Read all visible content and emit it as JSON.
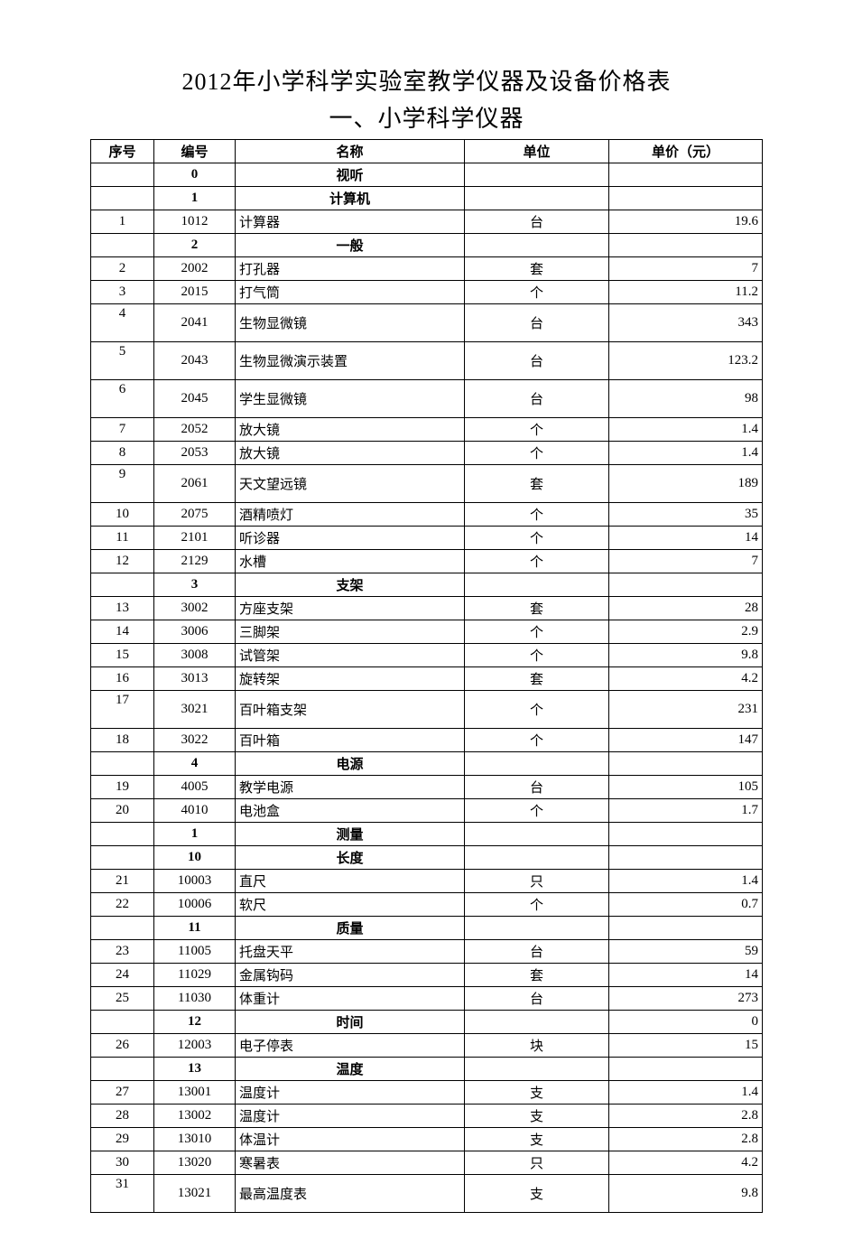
{
  "title_line1": "2012年小学科学实验室教学仪器及设备价格表",
  "title_line2": "一、小学科学仪器",
  "columns": {
    "seq": "序号",
    "code": "编号",
    "name": "名称",
    "unit": "单位",
    "price": "单价（元）"
  },
  "rows": [
    {
      "type": "section",
      "code": "0",
      "name": "视听"
    },
    {
      "type": "section",
      "code": "1",
      "name": "计算机"
    },
    {
      "type": "item",
      "seq": "1",
      "code": "1012",
      "name": "计算器",
      "unit": "台",
      "price": "19.6"
    },
    {
      "type": "section",
      "code": "2",
      "name": "一般"
    },
    {
      "type": "item",
      "seq": "2",
      "code": "2002",
      "name": "打孔器",
      "unit": "套",
      "price": "7"
    },
    {
      "type": "item",
      "seq": "3",
      "code": "2015",
      "name": "打气筒",
      "unit": "个",
      "price": "11.2"
    },
    {
      "type": "item",
      "seq": "4",
      "code": "2041",
      "name": "生物显微镜",
      "unit": "台",
      "price": "343",
      "tall": true
    },
    {
      "type": "item",
      "seq": "5",
      "code": "2043",
      "name": "生物显微演示装置",
      "unit": "台",
      "price": "123.2",
      "tall": true,
      "top": true
    },
    {
      "type": "item",
      "seq": "6",
      "code": "2045",
      "name": "学生显微镜",
      "unit": "台",
      "price": "98",
      "tall": true
    },
    {
      "type": "item",
      "seq": "7",
      "code": "2052",
      "name": "放大镜",
      "unit": "个",
      "price": "1.4"
    },
    {
      "type": "item",
      "seq": "8",
      "code": "2053",
      "name": "放大镜",
      "unit": "个",
      "price": "1.4"
    },
    {
      "type": "item",
      "seq": "9",
      "code": "2061",
      "name": "天文望远镜",
      "unit": "套",
      "price": "189",
      "tall": true,
      "top": true
    },
    {
      "type": "item",
      "seq": "10",
      "code": "2075",
      "name": "酒精喷灯",
      "unit": "个",
      "price": "35"
    },
    {
      "type": "item",
      "seq": "11",
      "code": "2101",
      "name": "听诊器",
      "unit": "个",
      "price": "14"
    },
    {
      "type": "item",
      "seq": "12",
      "code": "2129",
      "name": "水槽",
      "unit": "个",
      "price": "7"
    },
    {
      "type": "section",
      "code": "3",
      "name": "支架"
    },
    {
      "type": "item",
      "seq": "13",
      "code": "3002",
      "name": "方座支架",
      "unit": "套",
      "price": "28"
    },
    {
      "type": "item",
      "seq": "14",
      "code": "3006",
      "name": "三脚架",
      "unit": "个",
      "price": "2.9"
    },
    {
      "type": "item",
      "seq": "15",
      "code": "3008",
      "name": "试管架",
      "unit": "个",
      "price": "9.8"
    },
    {
      "type": "item",
      "seq": "16",
      "code": "3013",
      "name": "旋转架",
      "unit": "套",
      "price": "4.2"
    },
    {
      "type": "item",
      "seq": "17",
      "code": "3021",
      "name": "百叶箱支架",
      "unit": "个",
      "price": "231",
      "tall": true,
      "top": true
    },
    {
      "type": "item",
      "seq": "18",
      "code": "3022",
      "name": "百叶箱",
      "unit": "个",
      "price": "147"
    },
    {
      "type": "section",
      "code": "4",
      "name": "电源"
    },
    {
      "type": "item",
      "seq": "19",
      "code": "4005",
      "name": "教学电源",
      "unit": "台",
      "price": "105"
    },
    {
      "type": "item",
      "seq": "20",
      "code": "4010",
      "name": "电池盒",
      "unit": "个",
      "price": "1.7"
    },
    {
      "type": "section",
      "code": "1",
      "name": "测量"
    },
    {
      "type": "section",
      "code": "10",
      "name": "长度"
    },
    {
      "type": "item",
      "seq": "21",
      "code": "10003",
      "name": "直尺",
      "unit": "只",
      "price": "1.4"
    },
    {
      "type": "item",
      "seq": "22",
      "code": "10006",
      "name": "软尺",
      "unit": "个",
      "price": "0.7"
    },
    {
      "type": "section",
      "code": "11",
      "name": "质量"
    },
    {
      "type": "item",
      "seq": "23",
      "code": "11005",
      "name": "托盘天平",
      "unit": "台",
      "price": "59"
    },
    {
      "type": "item",
      "seq": "24",
      "code": "11029",
      "name": "金属钩码",
      "unit": "套",
      "price": "14"
    },
    {
      "type": "item",
      "seq": "25",
      "code": "11030",
      "name": "体重计",
      "unit": "台",
      "price": "273"
    },
    {
      "type": "section",
      "code": "12",
      "name": "时间",
      "price": "0"
    },
    {
      "type": "item",
      "seq": "26",
      "code": "12003",
      "name": "电子停表",
      "unit": "块",
      "price": "15"
    },
    {
      "type": "section",
      "code": "13",
      "name": "温度"
    },
    {
      "type": "item",
      "seq": "27",
      "code": "13001",
      "name": "温度计",
      "unit": "支",
      "price": "1.4"
    },
    {
      "type": "item",
      "seq": "28",
      "code": "13002",
      "name": "温度计",
      "unit": "支",
      "price": "2.8"
    },
    {
      "type": "item",
      "seq": "29",
      "code": "13010",
      "name": "体温计",
      "unit": "支",
      "price": "2.8"
    },
    {
      "type": "item",
      "seq": "30",
      "code": "13020",
      "name": "寒暑表",
      "unit": "只",
      "price": "4.2"
    },
    {
      "type": "item",
      "seq": "31",
      "code": "13021",
      "name": "最高温度表",
      "unit": "支",
      "price": "9.8",
      "tall": true,
      "top": true
    }
  ]
}
